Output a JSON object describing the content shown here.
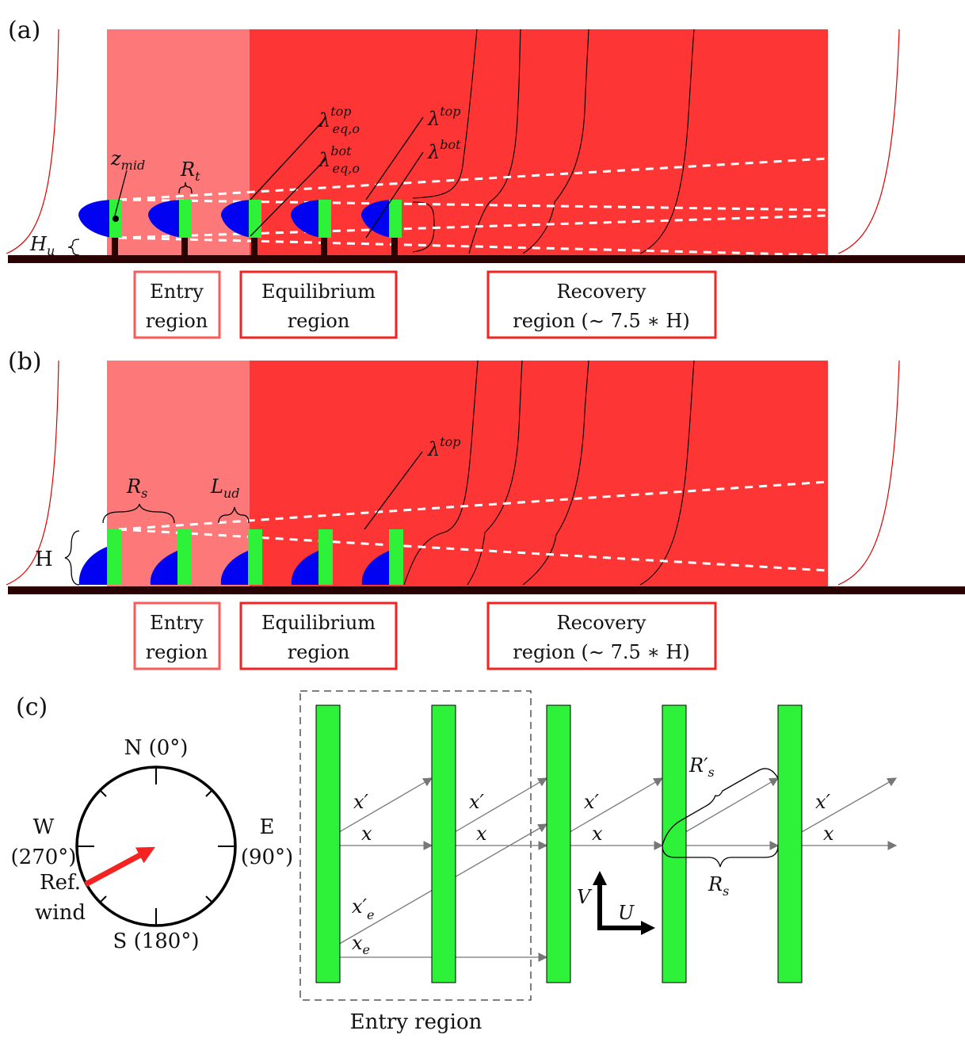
{
  "panels": {
    "a": "(a)",
    "b": "(b)",
    "c": "(c)"
  },
  "panel_a": {
    "z_mid": "z",
    "z_mid_sub": "mid",
    "R_t": "R",
    "R_t_sub": "t",
    "H_u": "H",
    "H_u_sub": "u",
    "lambda": "λ",
    "lambda_eq_top_sup": "top",
    "lambda_eq_top_sub": "eq,o",
    "lambda_eq_bot_sup": "bot",
    "lambda_eq_bot_sub": "eq,o",
    "lambda_top_sup": "top",
    "lambda_bot_sup": "bot"
  },
  "panel_b": {
    "R_s": "R",
    "R_s_sub": "s",
    "L_ud": "L",
    "L_ud_sub": "ud",
    "H": "H",
    "lambda": "λ",
    "lambda_top_sup": "top"
  },
  "regions": {
    "entry_line1": "Entry",
    "entry_line2": "region",
    "equilibrium_line1": "Equilibrium",
    "equilibrium_line2": "region",
    "recovery_line1": "Recovery",
    "recovery_line2": "region (∼ 7.5 ∗ H)"
  },
  "panel_c": {
    "compass_n": "N (0°)",
    "compass_e1": "E",
    "compass_e2": "(90°)",
    "compass_w1": "W",
    "compass_w2": "(270°)",
    "compass_s": "S (180°)",
    "ref_wind1": "Ref.",
    "ref_wind2": "wind",
    "x_prime": "x′",
    "x": "x",
    "x_e_prime": "x′",
    "x_e_sub": "e",
    "x_e": "x",
    "R_s_prime": "R′",
    "R_s": "R",
    "s_sub": "s",
    "V": "V",
    "U": "U",
    "entry_region": "Entry region"
  },
  "colors": {
    "light_red": "#fd7878",
    "red": "#fd3535",
    "green": "#2ef23a",
    "blue": "#0202f2",
    "ground": "#2a0202",
    "box_red": "#f52222"
  }
}
